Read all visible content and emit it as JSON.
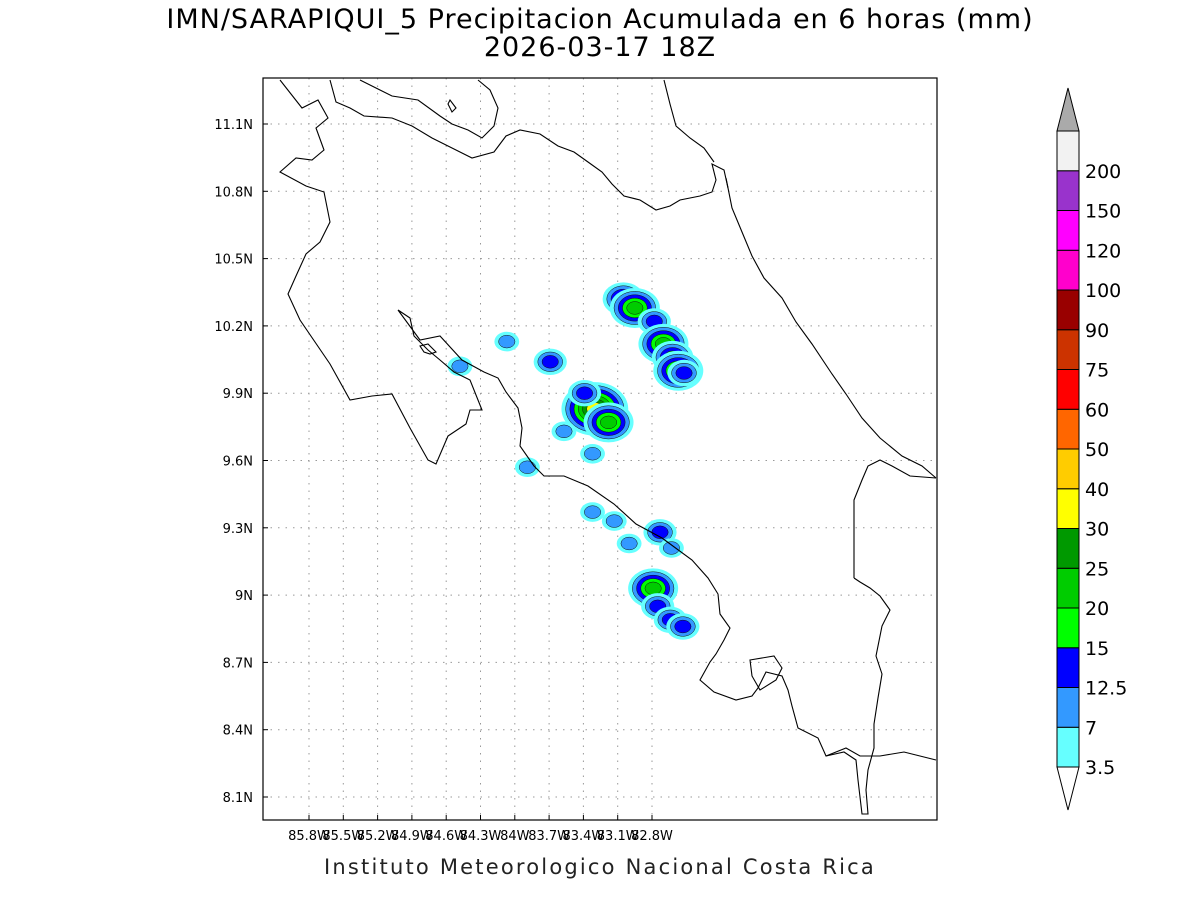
{
  "title_line1": "IMN/SARAPIQUI_5 Precipitacion Acumulada en 6 horas (mm)",
  "title_line2": "2026-03-17 18Z",
  "footer": "Instituto Meteorologico Nacional Costa Rica",
  "lon_ticks": [
    {
      "value": -85.8,
      "label": "85.8W"
    },
    {
      "value": -85.5,
      "label": "85.5W"
    },
    {
      "value": -85.2,
      "label": "85.2W"
    },
    {
      "value": -84.9,
      "label": "84.9W"
    },
    {
      "value": -84.6,
      "label": "84.6W"
    },
    {
      "value": -84.3,
      "label": "84.3W"
    },
    {
      "value": -84.0,
      "label": "84W"
    },
    {
      "value": -83.7,
      "label": "83.7W"
    },
    {
      "value": -83.4,
      "label": "83.4W"
    },
    {
      "value": -83.1,
      "label": "83.1W"
    },
    {
      "value": -82.8,
      "label": "82.8W"
    }
  ],
  "lat_ticks": [
    {
      "value": 11.1,
      "label": "11.1N"
    },
    {
      "value": 10.8,
      "label": "10.8N"
    },
    {
      "value": 10.5,
      "label": "10.5N"
    },
    {
      "value": 10.2,
      "label": "10.2N"
    },
    {
      "value": 9.9,
      "label": "9.9N"
    },
    {
      "value": 9.6,
      "label": "9.6N"
    },
    {
      "value": 9.3,
      "label": "9.3N"
    },
    {
      "value": 9.0,
      "label": "9N"
    },
    {
      "value": 8.7,
      "label": "8.7N"
    },
    {
      "value": 8.4,
      "label": "8.4N"
    },
    {
      "value": 8.1,
      "label": "8.1N"
    }
  ],
  "colorbar": {
    "levels": [
      {
        "label": "3.5",
        "color": "#66ffff"
      },
      {
        "label": "7",
        "color": "#3399ff"
      },
      {
        "label": "12.5",
        "color": "#0000ff"
      },
      {
        "label": "15",
        "color": "#00ff00"
      },
      {
        "label": "20",
        "color": "#00cc00"
      },
      {
        "label": "25",
        "color": "#009900"
      },
      {
        "label": "30",
        "color": "#ffff00"
      },
      {
        "label": "40",
        "color": "#ffcc00"
      },
      {
        "label": "50",
        "color": "#ff6600"
      },
      {
        "label": "60",
        "color": "#ff0000"
      },
      {
        "label": "75",
        "color": "#cc3300"
      },
      {
        "label": "90",
        "color": "#990000"
      },
      {
        "label": "100",
        "color": "#ff00cc"
      },
      {
        "label": "120",
        "color": "#ff00ff"
      },
      {
        "label": "150",
        "color": "#9933cc"
      },
      {
        "label": "200",
        "color": "#f2f2f2"
      }
    ],
    "over_color": "#aaaaaa",
    "under_color": "#ffffff"
  },
  "rain_cells": [
    {
      "lon": -83.05,
      "lat": 10.32,
      "level": 3
    },
    {
      "lon": -82.95,
      "lat": 10.28,
      "level": 4
    },
    {
      "lon": -82.78,
      "lat": 10.22,
      "level": 2
    },
    {
      "lon": -82.7,
      "lat": 10.12,
      "level": 4
    },
    {
      "lon": -82.62,
      "lat": 10.06,
      "level": 3
    },
    {
      "lon": -82.57,
      "lat": 10.0,
      "level": 4
    },
    {
      "lon": -82.52,
      "lat": 9.99,
      "level": 2
    },
    {
      "lon": -83.69,
      "lat": 10.04,
      "level": 2
    },
    {
      "lon": -83.3,
      "lat": 9.83,
      "level": 6
    },
    {
      "lon": -83.18,
      "lat": 9.77,
      "level": 4
    },
    {
      "lon": -83.39,
      "lat": 9.9,
      "level": 2
    },
    {
      "lon": -82.79,
      "lat": 9.03,
      "level": 4
    },
    {
      "lon": -82.75,
      "lat": 8.95,
      "level": 2
    },
    {
      "lon": -82.64,
      "lat": 8.89,
      "level": 2
    },
    {
      "lon": -82.53,
      "lat": 8.86,
      "level": 2
    },
    {
      "lon": -82.73,
      "lat": 9.28,
      "level": 2
    },
    {
      "lon": -82.63,
      "lat": 9.21,
      "level": 1
    },
    {
      "lon": -83.32,
      "lat": 9.63,
      "level": 1
    },
    {
      "lon": -83.57,
      "lat": 9.73,
      "level": 1
    },
    {
      "lon": -83.89,
      "lat": 9.57,
      "level": 1
    },
    {
      "lon": -84.48,
      "lat": 10.02,
      "level": 1
    },
    {
      "lon": -84.07,
      "lat": 10.13,
      "level": 1
    },
    {
      "lon": -83.32,
      "lat": 9.37,
      "level": 1
    },
    {
      "lon": -83.13,
      "lat": 9.33,
      "level": 1
    },
    {
      "lon": -83.0,
      "lat": 9.23,
      "level": 1
    }
  ]
}
